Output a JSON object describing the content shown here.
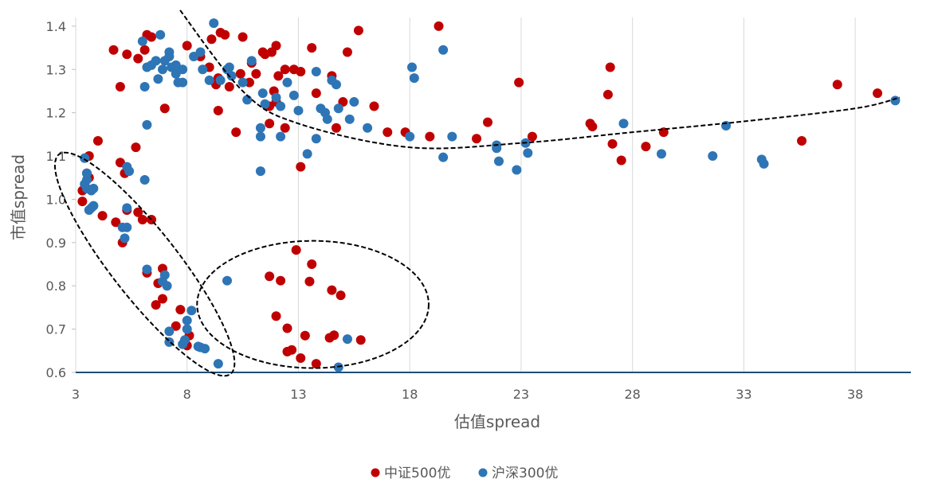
{
  "chart_data": {
    "type": "scatter",
    "xlabel": "估值spread",
    "ylabel": "市值spread",
    "xlim": [
      3,
      40.5
    ],
    "ylim": [
      0.6,
      1.42
    ],
    "x_ticks": [
      3,
      8,
      13,
      18,
      23,
      28,
      33,
      38
    ],
    "y_ticks": [
      0.6,
      0.7,
      0.8,
      0.9,
      1.0,
      1.1,
      1.2,
      1.3,
      1.4
    ],
    "y_tick_labels": [
      "0.6",
      "0.7",
      "0.8",
      "0.9",
      "1.0",
      "1.1",
      "1.2",
      "1.3",
      "1.4"
    ],
    "grid": "vertical",
    "legend_position": "bottom",
    "series": [
      {
        "name": "中证500优",
        "color": "#C00000",
        "points": [
          [
            4.7,
            1.345
          ],
          [
            5.3,
            1.335
          ],
          [
            5.8,
            1.325
          ],
          [
            6.2,
            1.38
          ],
          [
            6.1,
            1.345
          ],
          [
            6.4,
            1.375
          ],
          [
            5.0,
            1.26
          ],
          [
            7.0,
            1.21
          ],
          [
            5.7,
            1.12
          ],
          [
            4.0,
            1.135
          ],
          [
            3.6,
            1.1
          ],
          [
            3.3,
            1.02
          ],
          [
            3.5,
            1.06
          ],
          [
            3.3,
            0.995
          ],
          [
            3.6,
            1.05
          ],
          [
            4.2,
            0.962
          ],
          [
            4.8,
            0.947
          ],
          [
            5.1,
            0.9
          ],
          [
            5.3,
            0.975
          ],
          [
            5.8,
            0.97
          ],
          [
            6.0,
            0.953
          ],
          [
            6.4,
            0.953
          ],
          [
            5.2,
            1.06
          ],
          [
            5.0,
            1.085
          ],
          [
            6.2,
            0.83
          ],
          [
            6.7,
            0.806
          ],
          [
            6.9,
            0.84
          ],
          [
            6.9,
            0.77
          ],
          [
            6.6,
            0.756
          ],
          [
            7.5,
            0.707
          ],
          [
            7.7,
            0.745
          ],
          [
            8.1,
            0.685
          ],
          [
            7.9,
            0.672
          ],
          [
            8.0,
            0.662
          ],
          [
            8.6,
            1.33
          ],
          [
            8.0,
            1.355
          ],
          [
            9.0,
            1.305
          ],
          [
            9.1,
            1.37
          ],
          [
            9.5,
            1.385
          ],
          [
            9.7,
            1.38
          ],
          [
            9.4,
            1.28
          ],
          [
            9.3,
            1.265
          ],
          [
            10.2,
            1.155
          ],
          [
            9.4,
            1.205
          ],
          [
            9.9,
            1.26
          ],
          [
            10.4,
            1.29
          ],
          [
            10.5,
            1.375
          ],
          [
            10.8,
            1.27
          ],
          [
            10.9,
            1.315
          ],
          [
            11.1,
            1.29
          ],
          [
            11.4,
            1.34
          ],
          [
            11.5,
            1.335
          ],
          [
            11.8,
            1.34
          ],
          [
            11.9,
            1.25
          ],
          [
            12.0,
            1.355
          ],
          [
            12.1,
            1.285
          ],
          [
            11.7,
            1.215
          ],
          [
            12.0,
            1.225
          ],
          [
            11.7,
            1.175
          ],
          [
            12.4,
            1.165
          ],
          [
            12.4,
            1.3
          ],
          [
            12.8,
            1.3
          ],
          [
            13.1,
            1.295
          ],
          [
            13.6,
            1.35
          ],
          [
            13.8,
            1.245
          ],
          [
            13.1,
            1.075
          ],
          [
            14.5,
            1.285
          ],
          [
            14.7,
            1.165
          ],
          [
            15.0,
            1.225
          ],
          [
            15.2,
            1.34
          ],
          [
            15.7,
            1.39
          ],
          [
            16.4,
            1.215
          ],
          [
            17.0,
            1.155
          ],
          [
            17.8,
            1.155
          ],
          [
            18.9,
            1.145
          ],
          [
            19.3,
            1.4
          ],
          [
            21.0,
            1.14
          ],
          [
            21.5,
            1.178
          ],
          [
            22.9,
            1.27
          ],
          [
            23.5,
            1.145
          ],
          [
            26.1,
            1.175
          ],
          [
            26.2,
            1.168
          ],
          [
            27.0,
            1.305
          ],
          [
            26.9,
            1.242
          ],
          [
            27.1,
            1.128
          ],
          [
            27.5,
            1.09
          ],
          [
            28.6,
            1.122
          ],
          [
            29.4,
            1.155
          ],
          [
            35.6,
            1.135
          ],
          [
            37.2,
            1.265
          ],
          [
            39.0,
            1.245
          ],
          [
            11.7,
            0.822
          ],
          [
            12.2,
            0.812
          ],
          [
            12.0,
            0.73
          ],
          [
            12.5,
            0.702
          ],
          [
            12.5,
            0.648
          ],
          [
            12.7,
            0.652
          ],
          [
            12.9,
            0.883
          ],
          [
            13.6,
            0.85
          ],
          [
            13.5,
            0.81
          ],
          [
            13.1,
            0.633
          ],
          [
            13.3,
            0.685
          ],
          [
            13.8,
            0.62
          ],
          [
            14.5,
            0.79
          ],
          [
            14.4,
            0.68
          ],
          [
            14.6,
            0.686
          ],
          [
            14.9,
            0.778
          ],
          [
            15.8,
            0.675
          ]
        ]
      },
      {
        "name": "沪深300优",
        "color": "#2E75B6",
        "points": [
          [
            9.2,
            1.407
          ],
          [
            6.2,
            1.305
          ],
          [
            6.1,
            1.26
          ],
          [
            6.2,
            1.172
          ],
          [
            6.0,
            1.365
          ],
          [
            6.4,
            1.31
          ],
          [
            6.6,
            1.32
          ],
          [
            6.8,
            1.38
          ],
          [
            6.7,
            1.278
          ],
          [
            6.9,
            1.3
          ],
          [
            7.0,
            1.32
          ],
          [
            7.2,
            1.33
          ],
          [
            7.2,
            1.34
          ],
          [
            7.3,
            1.305
          ],
          [
            7.5,
            1.31
          ],
          [
            7.5,
            1.29
          ],
          [
            7.6,
            1.27
          ],
          [
            7.8,
            1.27
          ],
          [
            7.8,
            1.3
          ],
          [
            8.3,
            1.33
          ],
          [
            8.6,
            1.34
          ],
          [
            8.7,
            1.3
          ],
          [
            9.0,
            1.275
          ],
          [
            9.5,
            1.275
          ],
          [
            9.8,
            1.3
          ],
          [
            9.9,
            1.305
          ],
          [
            10.0,
            1.285
          ],
          [
            10.5,
            1.27
          ],
          [
            10.7,
            1.23
          ],
          [
            10.9,
            1.32
          ],
          [
            11.3,
            1.165
          ],
          [
            11.3,
            1.145
          ],
          [
            11.3,
            1.065
          ],
          [
            11.4,
            1.245
          ],
          [
            11.5,
            1.22
          ],
          [
            12.0,
            1.235
          ],
          [
            12.2,
            1.215
          ],
          [
            12.2,
            1.145
          ],
          [
            12.5,
            1.27
          ],
          [
            12.8,
            1.24
          ],
          [
            13.0,
            1.205
          ],
          [
            13.4,
            1.105
          ],
          [
            13.8,
            1.295
          ],
          [
            13.8,
            1.14
          ],
          [
            14.0,
            1.21
          ],
          [
            14.2,
            1.2
          ],
          [
            14.3,
            1.185
          ],
          [
            14.5,
            1.275
          ],
          [
            14.7,
            1.265
          ],
          [
            14.8,
            1.21
          ],
          [
            15.5,
            1.225
          ],
          [
            15.3,
            1.185
          ],
          [
            16.1,
            1.165
          ],
          [
            18.0,
            1.145
          ],
          [
            18.1,
            1.305
          ],
          [
            18.2,
            1.28
          ],
          [
            19.5,
            1.345
          ],
          [
            19.5,
            1.097
          ],
          [
            19.9,
            1.145
          ],
          [
            21.9,
            1.125
          ],
          [
            21.9,
            1.118
          ],
          [
            22.0,
            1.088
          ],
          [
            22.8,
            1.068
          ],
          [
            23.2,
            1.13
          ],
          [
            23.3,
            1.107
          ],
          [
            27.6,
            1.175
          ],
          [
            29.3,
            1.105
          ],
          [
            31.6,
            1.1
          ],
          [
            32.2,
            1.17
          ],
          [
            33.8,
            1.092
          ],
          [
            33.9,
            1.082
          ],
          [
            39.8,
            1.228
          ],
          [
            3.4,
            1.035
          ],
          [
            3.4,
            1.095
          ],
          [
            3.5,
            1.025
          ],
          [
            3.5,
            1.045
          ],
          [
            3.6,
            0.975
          ],
          [
            3.7,
            0.98
          ],
          [
            3.7,
            1.02
          ],
          [
            3.8,
            0.985
          ],
          [
            3.8,
            1.025
          ],
          [
            3.5,
            1.06
          ],
          [
            5.1,
            0.935
          ],
          [
            5.2,
            0.91
          ],
          [
            5.3,
            0.935
          ],
          [
            5.3,
            0.98
          ],
          [
            5.3,
            1.075
          ],
          [
            5.4,
            1.065
          ],
          [
            6.1,
            1.045
          ],
          [
            6.2,
            0.838
          ],
          [
            6.9,
            0.81
          ],
          [
            7.0,
            0.825
          ],
          [
            7.1,
            0.8
          ],
          [
            7.2,
            0.695
          ],
          [
            7.2,
            0.67
          ],
          [
            7.8,
            0.665
          ],
          [
            7.9,
            0.675
          ],
          [
            8.0,
            0.7
          ],
          [
            8.0,
            0.72
          ],
          [
            8.2,
            0.743
          ],
          [
            8.5,
            0.66
          ],
          [
            8.6,
            0.658
          ],
          [
            8.8,
            0.655
          ],
          [
            9.4,
            0.62
          ],
          [
            9.8,
            0.812
          ],
          [
            14.8,
            0.612
          ],
          [
            15.2,
            0.677
          ]
        ]
      }
    ]
  },
  "trend_curves": [
    {
      "name": "fitted-trend",
      "points": [
        [
          7.5,
          1.45
        ],
        [
          10.5,
          1.25
        ],
        [
          13,
          1.175
        ],
        [
          18,
          1.12
        ],
        [
          23,
          1.13
        ],
        [
          28,
          1.155
        ],
        [
          33,
          1.18
        ],
        [
          38,
          1.21
        ],
        [
          40,
          1.235
        ]
      ]
    }
  ],
  "cluster_ellipses": [
    {
      "name": "cluster-left",
      "cx": 6.1,
      "cy": 0.85,
      "rx": 0.29,
      "ry": 2.95,
      "angle_deg": -38
    },
    {
      "name": "cluster-middle",
      "cx": 13.65,
      "cy": 0.757,
      "rx": 5.2,
      "ry": 0.147,
      "angle_deg": 0
    }
  ]
}
